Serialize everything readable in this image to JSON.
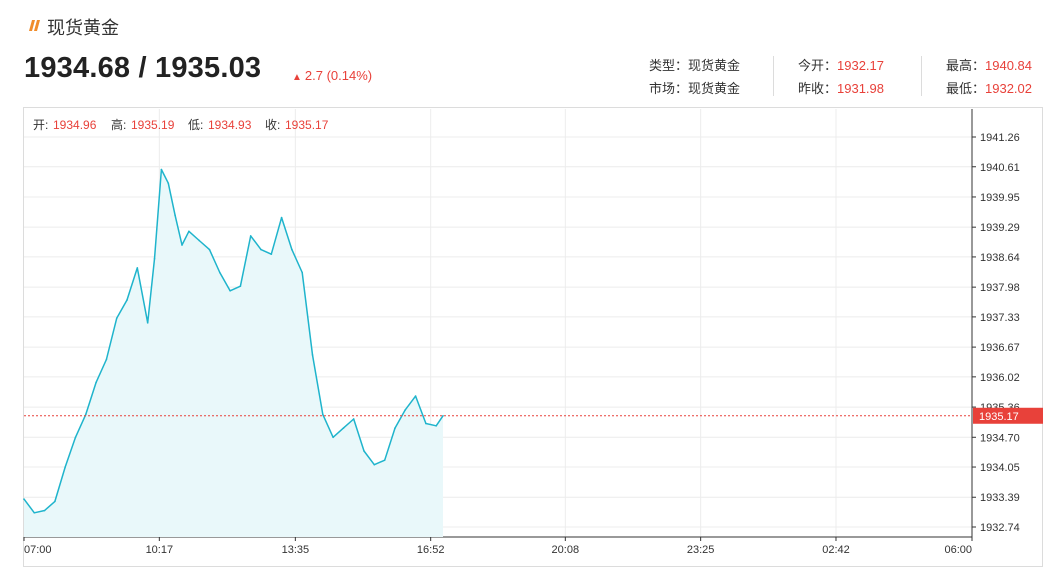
{
  "header": {
    "title": "现货黄金",
    "price": "1934.68 / 1935.03",
    "change": "2.7 (0.14%)"
  },
  "stats": {
    "type_label": "类型：",
    "type_value": "现货黄金",
    "market_label": "市场：",
    "market_value": "现货黄金",
    "open_label": "今开：",
    "open_value": "1932.17",
    "prev_label": "昨收：",
    "prev_value": "1931.98",
    "high_label": "最高：",
    "high_value": "1940.84",
    "low_label": "最低：",
    "low_value": "1932.02"
  },
  "ohlc": {
    "open_label": "开:",
    "open_value": "1934.96",
    "high_label": "高:",
    "high_value": "1935.19",
    "low_label": "低:",
    "low_value": "1934.93",
    "close_label": "收:",
    "close_value": "1935.17"
  },
  "colors": {
    "line": "#1fb4cc",
    "area": "#e9f8fa",
    "accent": "#e8413a",
    "grid": "#ececec",
    "axis": "#333333"
  },
  "chart_data": {
    "type": "area",
    "y_ticks": [
      "1941.26",
      "1940.61",
      "1939.95",
      "1939.29",
      "1938.64",
      "1937.98",
      "1937.33",
      "1936.67",
      "1936.02",
      "1935.36",
      "1934.70",
      "1934.05",
      "1933.39",
      "1932.74"
    ],
    "ylim": [
      1932.74,
      1941.26
    ],
    "x_ticks": [
      "07:00",
      "10:17",
      "13:35",
      "16:52",
      "20:08",
      "23:25",
      "02:42",
      "06:00"
    ],
    "last_price": 1935.17,
    "last_price_label": "1935.17",
    "series": [
      {
        "x": [
          "07:00",
          "07:15",
          "07:30",
          "07:45",
          "08:00",
          "08:15",
          "08:30",
          "08:45",
          "09:00",
          "09:15",
          "09:30",
          "09:45",
          "10:00",
          "10:10",
          "10:20",
          "10:30",
          "10:40",
          "10:50",
          "11:00",
          "11:15",
          "11:30",
          "11:45",
          "12:00",
          "12:15",
          "12:30",
          "12:45",
          "13:00",
          "13:15",
          "13:30",
          "13:45",
          "14:00",
          "14:15",
          "14:30",
          "14:45",
          "15:00",
          "15:15",
          "15:30",
          "15:45",
          "16:00",
          "16:15",
          "16:30",
          "16:45",
          "17:00",
          "17:10"
        ],
        "values": [
          1933.35,
          1933.05,
          1933.1,
          1933.3,
          1934.05,
          1934.7,
          1935.2,
          1935.9,
          1936.4,
          1937.3,
          1937.7,
          1938.4,
          1937.2,
          1938.6,
          1940.55,
          1940.25,
          1939.55,
          1938.9,
          1939.2,
          1939.0,
          1938.8,
          1938.3,
          1937.9,
          1938.0,
          1939.1,
          1938.8,
          1938.7,
          1939.5,
          1938.8,
          1938.3,
          1936.5,
          1935.2,
          1934.7,
          1934.9,
          1935.1,
          1934.4,
          1934.1,
          1934.2,
          1934.9,
          1935.3,
          1935.6,
          1935.0,
          1934.95,
          1935.17
        ]
      }
    ]
  }
}
